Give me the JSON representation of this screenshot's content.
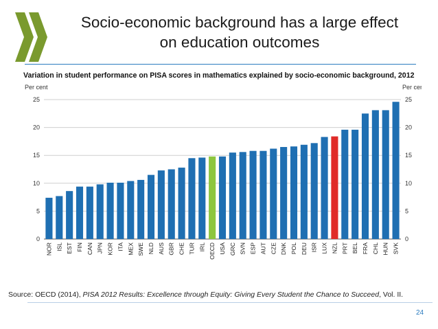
{
  "slide": {
    "title_line1": "Socio-economic background has a large effect",
    "title_line2": "on education outcomes",
    "source_prefix": "Source: OECD (2014), ",
    "source_italic": "PISA 2012 Results: Excellence through Equity: Giving Every Student the Chance to Succeed",
    "source_suffix": ", Vol. II.",
    "page_number": "24"
  },
  "colors": {
    "bar": "#1f6fb2",
    "oecd": "#8dc63f",
    "nzl": "#e02b28",
    "logo": "#7a9a2e",
    "rule": "#2a7bbf"
  },
  "chart_data": {
    "type": "bar",
    "title": "Variation in student performance on PISA scores in mathematics explained by socio-economic background, 2012",
    "ylabel_left": "Per cent",
    "ylabel_right": "Per cent",
    "ylim": [
      0,
      25
    ],
    "yticks": [
      0,
      5,
      10,
      15,
      20,
      25
    ],
    "grid": true,
    "categories": [
      "NOR",
      "ISL",
      "EST",
      "FIN",
      "CAN",
      "JPN",
      "KOR",
      "ITA",
      "MEX",
      "SWE",
      "NLD",
      "AUS",
      "GBR",
      "CHE",
      "TUR",
      "IRL",
      "OECD",
      "USA",
      "GRC",
      "SVN",
      "ESP",
      "AUT",
      "CZE",
      "DNK",
      "POL",
      "DEU",
      "ISR",
      "LUX",
      "NZL",
      "PRT",
      "BEL",
      "FRA",
      "CHL",
      "HUN",
      "SVK"
    ],
    "values": [
      7.4,
      7.7,
      8.6,
      9.4,
      9.4,
      9.8,
      10.1,
      10.1,
      10.4,
      10.6,
      11.5,
      12.3,
      12.5,
      12.8,
      14.5,
      14.6,
      14.8,
      14.8,
      15.5,
      15.6,
      15.8,
      15.8,
      16.2,
      16.5,
      16.6,
      16.9,
      17.2,
      18.3,
      18.4,
      19.6,
      19.6,
      22.5,
      23.1,
      23.1,
      24.6
    ],
    "highlights": {
      "OECD": "oecd",
      "NZL": "nzl"
    }
  }
}
